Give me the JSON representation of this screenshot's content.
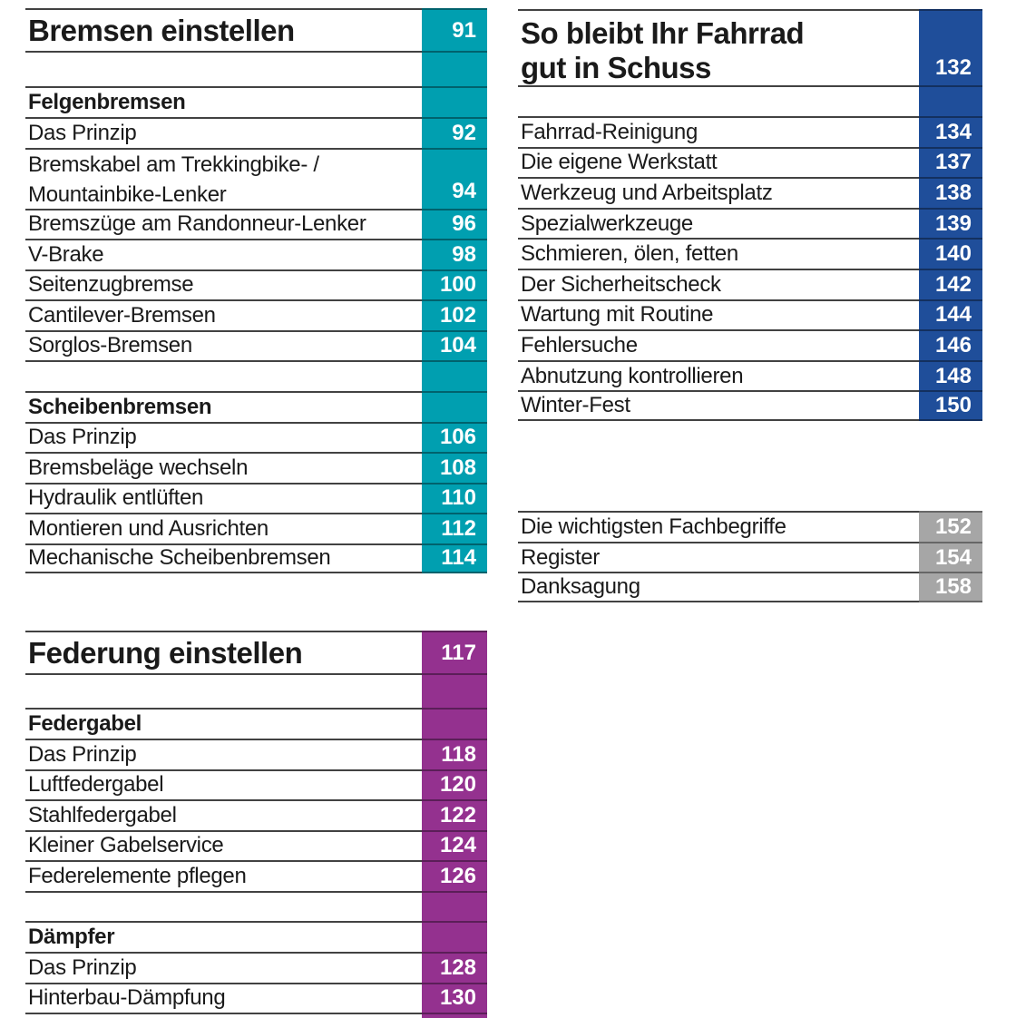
{
  "colors": {
    "teal": "#009fb0",
    "blue": "#1f4e9a",
    "purple": "#94318f",
    "gray": "#a6a6a6",
    "line": "#2f2f2f",
    "text": "#1a1a1a",
    "band_number": "#ffffff"
  },
  "sections": {
    "bremsen": {
      "rows": [
        {
          "type": "title",
          "label": "Bremsen einstellen",
          "page": "91"
        },
        {
          "type": "gap_title"
        },
        {
          "type": "header",
          "label": "Felgenbremsen"
        },
        {
          "type": "entry",
          "label": "Das Prinzip",
          "page": "92"
        },
        {
          "type": "entry2",
          "label": "Bremskabel am Trekkingbike- /",
          "label2": "Mountainbike-Lenker",
          "page": "94"
        },
        {
          "type": "entry",
          "label": "Bremszüge am Randonneur-Lenker",
          "page": "96"
        },
        {
          "type": "entry",
          "label": "V-Brake",
          "page": "98"
        },
        {
          "type": "entry",
          "label": "Seitenzugbremse",
          "page": "100"
        },
        {
          "type": "entry",
          "label": "Cantilever-Bremsen",
          "page": "102"
        },
        {
          "type": "entry",
          "label": "Sorglos-Bremsen",
          "page": "104"
        },
        {
          "type": "gap"
        },
        {
          "type": "header",
          "label": "Scheibenbremsen"
        },
        {
          "type": "entry",
          "label": "Das Prinzip",
          "page": "106"
        },
        {
          "type": "entry",
          "label": "Bremsbeläge wechseln",
          "page": "108"
        },
        {
          "type": "entry",
          "label": "Hydraulik entlüften",
          "page": "110"
        },
        {
          "type": "entry",
          "label": "Montieren und Ausrichten",
          "page": "112"
        },
        {
          "type": "entry",
          "label": "Mechanische Scheibenbremsen",
          "page": "114"
        }
      ]
    },
    "schuss": {
      "rows": [
        {
          "type": "title2",
          "label": "So bleibt Ihr Fahrrad",
          "label2": "gut in Schuss",
          "page": "132"
        },
        {
          "type": "gap_title"
        },
        {
          "type": "entry",
          "label": "Fahrrad-Reinigung",
          "page": "134"
        },
        {
          "type": "entry",
          "label": "Die eigene Werkstatt",
          "page": "137"
        },
        {
          "type": "entry",
          "label": "Werkzeug und Arbeitsplatz",
          "page": "138"
        },
        {
          "type": "entry",
          "label": "Spezialwerkzeuge",
          "page": "139"
        },
        {
          "type": "entry",
          "label": "Schmieren, ölen, fetten",
          "page": "140"
        },
        {
          "type": "entry",
          "label": "Der Sicherheitscheck",
          "page": "142"
        },
        {
          "type": "entry",
          "label": "Wartung mit Routine",
          "page": "144"
        },
        {
          "type": "entry",
          "label": "Fehlersuche",
          "page": "146"
        },
        {
          "type": "entry",
          "label": "Abnutzung kontrollieren",
          "page": "148"
        },
        {
          "type": "entry",
          "label": "Winter-Fest",
          "page": "150"
        }
      ]
    },
    "glossar": {
      "rows": [
        {
          "type": "entry",
          "label": "Die wichtigsten Fachbegriffe",
          "page": "152"
        },
        {
          "type": "entry",
          "label": "Register",
          "page": "154"
        },
        {
          "type": "entry",
          "label": "Danksagung",
          "page": "158"
        }
      ]
    },
    "federung": {
      "rows": [
        {
          "type": "title",
          "label": "Federung einstellen",
          "page": "117"
        },
        {
          "type": "gap_title"
        },
        {
          "type": "header",
          "label": "Federgabel"
        },
        {
          "type": "entry",
          "label": "Das Prinzip",
          "page": "118"
        },
        {
          "type": "entry",
          "label": "Luftfedergabel",
          "page": "120"
        },
        {
          "type": "entry",
          "label": "Stahlfedergabel",
          "page": "122"
        },
        {
          "type": "entry",
          "label": "Kleiner Gabelservice",
          "page": "124"
        },
        {
          "type": "entry",
          "label": "Federelemente pflegen",
          "page": "126"
        },
        {
          "type": "gap"
        },
        {
          "type": "header",
          "label": "Dämpfer"
        },
        {
          "type": "entry",
          "label": "Das Prinzip",
          "page": "128"
        },
        {
          "type": "entry",
          "label": "Hinterbau-Dämpfung",
          "page": "130"
        },
        {
          "type": "stub"
        }
      ]
    }
  }
}
